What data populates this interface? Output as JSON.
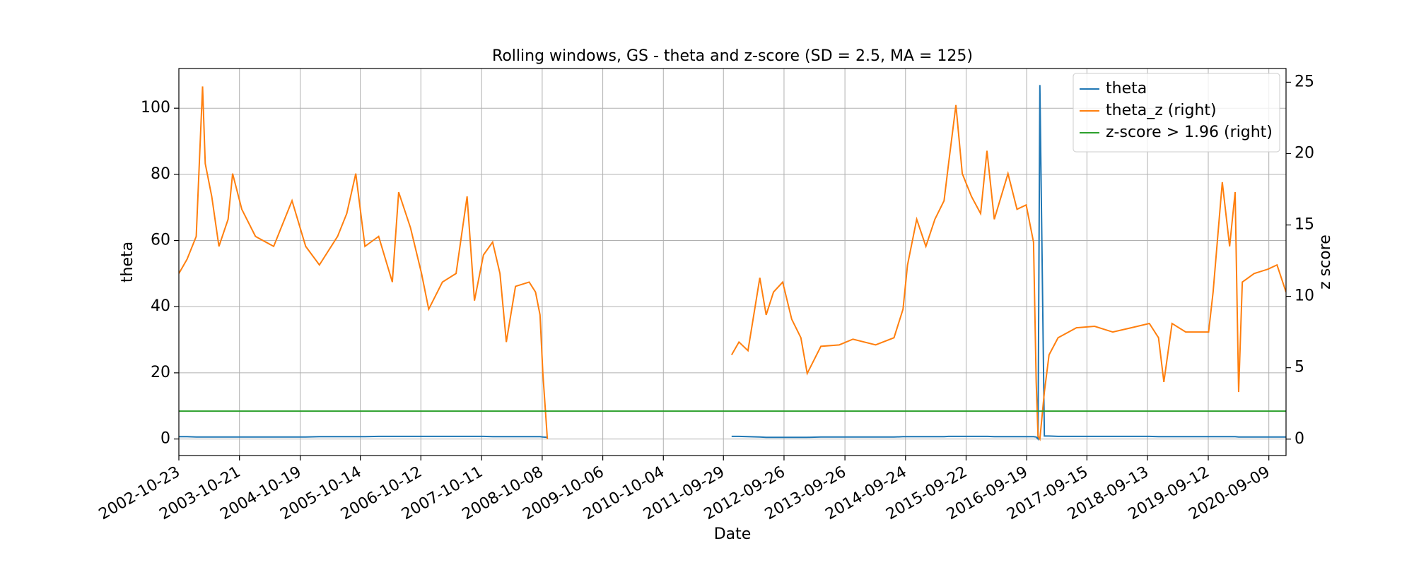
{
  "chart_data": {
    "type": "line",
    "title": "Rolling windows, GS - theta and z-score (SD = 2.5, MA = 125)",
    "x_label": "Date",
    "y_label": "theta",
    "y2_label": "z score",
    "x": [
      "2002-10-23",
      "2002-12-11",
      "2003-02-04",
      "2003-03-14",
      "2003-03-30",
      "2003-05-08",
      "2003-06-20",
      "2003-08-14",
      "2003-09-10",
      "2003-11-04",
      "2004-01-25",
      "2004-05-13",
      "2004-08-31",
      "2004-11-21",
      "2005-02-11",
      "2005-05-31",
      "2005-07-25",
      "2005-09-17",
      "2005-11-11",
      "2006-02-01",
      "2006-04-24",
      "2006-06-01",
      "2006-08-11",
      "2006-10-16",
      "2006-11-28",
      "2007-02-18",
      "2007-05-11",
      "2007-07-16",
      "2007-08-29",
      "2007-10-22",
      "2007-12-16",
      "2008-01-29",
      "2008-03-07",
      "2008-05-01",
      "2008-07-22",
      "2008-08-29",
      "2008-09-25",
      "2008-10-12",
      "2008-11-08",
      "2009-10-02",
      "2010-10-03",
      "2011-11-17",
      "2011-12-31",
      "2012-02-23",
      "2012-05-04",
      "2012-06-11",
      "2012-07-25",
      "2012-09-18",
      "2012-11-11",
      "2013-01-05",
      "2013-02-12",
      "2013-05-05",
      "2013-08-23",
      "2013-11-13",
      "2014-03-29",
      "2014-07-17",
      "2014-09-09",
      "2014-10-06",
      "2014-11-30",
      "2015-01-24",
      "2015-03-19",
      "2015-05-13",
      "2015-06-09",
      "2015-07-23",
      "2015-08-30",
      "2015-10-24",
      "2015-12-18",
      "2016-01-25",
      "2016-03-09",
      "2016-05-30",
      "2016-07-23",
      "2016-09-16",
      "2016-10-30",
      "2016-11-15",
      "2016-11-26",
      "2016-12-07",
      "2017-01-03",
      "2017-01-31",
      "2017-03-26",
      "2017-07-14",
      "2017-10-31",
      "2018-02-17",
      "2018-06-07",
      "2018-09-24",
      "2018-11-18",
      "2018-12-20",
      "2019-02-07",
      "2019-04-30",
      "2019-09-14",
      "2019-10-11",
      "2019-12-05",
      "2020-01-18",
      "2020-02-20",
      "2020-03-12",
      "2020-04-03",
      "2020-06-13",
      "2020-09-03",
      "2020-10-28",
      "2020-12-21"
    ],
    "xlim": [
      "2002-10-23",
      "2020-12-21"
    ],
    "xticks": [
      "2002-10-23",
      "2003-10-21",
      "2004-10-19",
      "2005-10-14",
      "2006-10-12",
      "2007-10-11",
      "2008-10-08",
      "2009-10-06",
      "2010-10-04",
      "2011-09-29",
      "2012-09-26",
      "2013-09-26",
      "2014-09-24",
      "2015-09-22",
      "2016-09-19",
      "2017-09-15",
      "2018-09-13",
      "2019-09-12",
      "2020-09-09"
    ],
    "ylim": [
      -5,
      112
    ],
    "yticks": [
      0,
      20,
      40,
      60,
      80,
      100
    ],
    "y2lim": [
      -1.15,
      25.96
    ],
    "y2ticks": [
      0,
      5,
      10,
      15,
      20,
      25
    ],
    "grid": true,
    "legend": "upper right",
    "series": [
      {
        "name": "theta",
        "color": "#1f77b4",
        "values": [
          0.7,
          0.7,
          0.6,
          0.6,
          0.6,
          0.6,
          0.6,
          0.6,
          0.6,
          0.6,
          0.6,
          0.6,
          0.6,
          0.6,
          0.7,
          0.7,
          0.7,
          0.7,
          0.7,
          0.8,
          0.8,
          0.8,
          0.8,
          0.8,
          0.8,
          0.8,
          0.8,
          0.8,
          0.8,
          0.8,
          0.7,
          0.7,
          0.7,
          0.7,
          0.7,
          0.7,
          0.7,
          0.6,
          0.5,
          null,
          null,
          0.8,
          0.8,
          0.7,
          0.6,
          0.5,
          0.5,
          0.5,
          0.5,
          0.5,
          0.5,
          0.6,
          0.6,
          0.6,
          0.6,
          0.6,
          0.7,
          0.7,
          0.7,
          0.7,
          0.7,
          0.7,
          0.8,
          0.8,
          0.8,
          0.8,
          0.8,
          0.8,
          0.7,
          0.7,
          0.7,
          0.7,
          0.7,
          0.6,
          0,
          107,
          0.9,
          0.9,
          0.8,
          0.8,
          0.8,
          0.8,
          0.8,
          0.8,
          0.7,
          0.7,
          0.7,
          0.7,
          0.7,
          0.7,
          0.7,
          0.7,
          0.7,
          0.6,
          0.6,
          0.6,
          0.6,
          0.6,
          0.6
        ]
      },
      {
        "name": "theta_z (right)",
        "color": "#ff7f0e",
        "axis": "y2",
        "values": [
          11.6,
          12.6,
          14.2,
          24.7,
          19.3,
          17,
          13.5,
          15.4,
          18.6,
          16.1,
          14.2,
          13.5,
          16.7,
          13.5,
          12.2,
          14.2,
          15.8,
          18.6,
          13.5,
          14.2,
          11,
          17.3,
          14.8,
          11.6,
          9.1,
          11,
          11.6,
          17,
          9.7,
          12.9,
          13.8,
          11.6,
          6.8,
          10.7,
          11,
          10.3,
          8.7,
          4.6,
          0,
          null,
          null,
          5.9,
          6.8,
          6.2,
          11.3,
          8.7,
          10.3,
          11,
          8.4,
          7.1,
          4.6,
          6.5,
          6.6,
          7,
          6.6,
          7.1,
          9.1,
          12.2,
          15.4,
          13.5,
          15.4,
          16.7,
          19.3,
          23.4,
          18.6,
          17,
          15.8,
          20.2,
          15.4,
          18.6,
          16.1,
          16.4,
          13.8,
          4,
          0.2,
          0,
          3.3,
          5.9,
          7.1,
          7.8,
          7.9,
          7.5,
          7.8,
          8.1,
          7.1,
          4,
          8.1,
          7.5,
          7.5,
          10.3,
          18,
          13.5,
          17.3,
          3.3,
          11,
          11.6,
          11.9,
          12.2,
          10.3
        ]
      },
      {
        "name": "z-score > 1.96 (right)",
        "color": "#2ca02c",
        "axis": "y2",
        "values": [
          1.96,
          1.96,
          1.96,
          1.96,
          1.96,
          1.96,
          1.96,
          1.96,
          1.96,
          1.96,
          1.96,
          1.96,
          1.96,
          1.96,
          1.96,
          1.96,
          1.96,
          1.96,
          1.96,
          1.96,
          1.96,
          1.96,
          1.96,
          1.96,
          1.96,
          1.96,
          1.96,
          1.96,
          1.96,
          1.96,
          1.96,
          1.96,
          1.96,
          1.96,
          1.96,
          1.96,
          1.96,
          1.96,
          1.96,
          1.96,
          1.96,
          1.96,
          1.96,
          1.96,
          1.96,
          1.96,
          1.96,
          1.96,
          1.96,
          1.96,
          1.96,
          1.96,
          1.96,
          1.96,
          1.96,
          1.96,
          1.96,
          1.96,
          1.96,
          1.96,
          1.96,
          1.96,
          1.96,
          1.96,
          1.96,
          1.96,
          1.96,
          1.96,
          1.96,
          1.96,
          1.96,
          1.96,
          1.96,
          1.96,
          1.96,
          1.96,
          1.96,
          1.96,
          1.96,
          1.96,
          1.96,
          1.96,
          1.96,
          1.96,
          1.96,
          1.96,
          1.96,
          1.96,
          1.96,
          1.96,
          1.96,
          1.96,
          1.96,
          1.96,
          1.96,
          1.96,
          1.96,
          1.96,
          1.96
        ]
      }
    ]
  }
}
